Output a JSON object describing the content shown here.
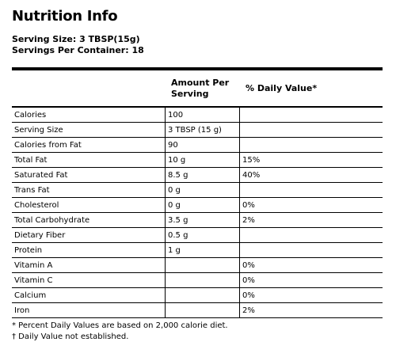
{
  "title": "Nutrition Info",
  "serving_size_line": "Serving Size: 3 TBSP(15g)",
  "servings_per_container_line": "Servings Per Container: 18",
  "table": {
    "header_amount": "Amount Per Serving",
    "header_dv": "% Daily Value*",
    "rows": [
      {
        "name": "Calories",
        "amount": "100",
        "dv": ""
      },
      {
        "name": "Serving Size",
        "amount": "3 TBSP (15 g)",
        "dv": ""
      },
      {
        "name": "Calories from Fat",
        "amount": "90",
        "dv": ""
      },
      {
        "name": "Total Fat",
        "amount": "10 g",
        "dv": "15%"
      },
      {
        "name": "Saturated Fat",
        "amount": "8.5 g",
        "dv": "40%"
      },
      {
        "name": "Trans Fat",
        "amount": "0 g",
        "dv": ""
      },
      {
        "name": "Cholesterol",
        "amount": "0 g",
        "dv": "0%"
      },
      {
        "name": "Total Carbohydrate",
        "amount": "3.5 g",
        "dv": "2%"
      },
      {
        "name": "Dietary Fiber",
        "amount": "0.5 g",
        "dv": ""
      },
      {
        "name": "Protein",
        "amount": "1 g",
        "dv": ""
      },
      {
        "name": "Vitamin A",
        "amount": "",
        "dv": "0%"
      },
      {
        "name": "Vitamin C",
        "amount": "",
        "dv": "0%"
      },
      {
        "name": "Calcium",
        "amount": "",
        "dv": "0%"
      },
      {
        "name": "Iron",
        "amount": "",
        "dv": "2%"
      }
    ]
  },
  "footnotes": [
    "* Percent Daily Values are based on 2,000 calorie diet.",
    "† Daily Value not established."
  ]
}
